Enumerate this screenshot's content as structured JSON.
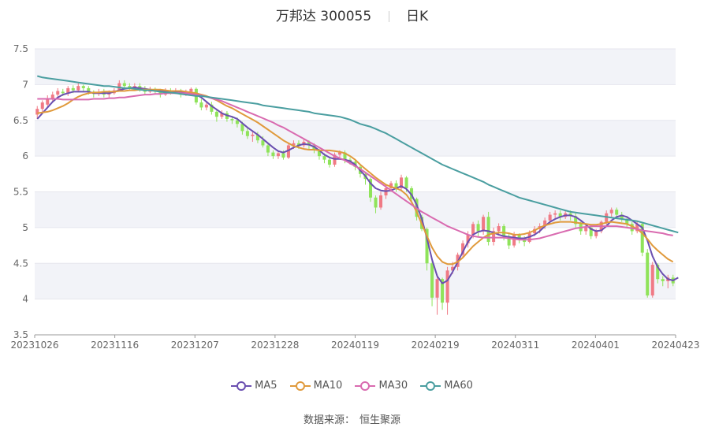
{
  "title": {
    "name": "万邦达",
    "code": "300055",
    "period": "日K"
  },
  "source": {
    "label": "数据来源：",
    "name": "恒生聚源"
  },
  "colors": {
    "up": "#f07a85",
    "down": "#8fe35a",
    "ma5": "#6a4fb0",
    "ma10": "#e09a3c",
    "ma30": "#d96bb0",
    "ma60": "#4a9ea0",
    "band": "#f2f3f8",
    "grid": "#e6e6ee",
    "axis": "#666666"
  },
  "chart_data": {
    "type": "candlestick",
    "title": "万邦达 300055 日K",
    "ylim": [
      3.5,
      7.5
    ],
    "yticks": [
      "3.5",
      "4",
      "4.5",
      "5",
      "5.5",
      "6",
      "6.5",
      "7",
      "7.5"
    ],
    "xticks": [
      "20231026",
      "20231116",
      "20231207",
      "20231228",
      "20240119",
      "20240219",
      "20240311",
      "20240401",
      "20240423"
    ],
    "legend": [
      "MA5",
      "MA10",
      "MA30",
      "MA60"
    ],
    "legend_position": "bottom",
    "candles": [
      [
        6.58,
        6.66,
        6.52,
        6.7
      ],
      [
        6.66,
        6.75,
        6.62,
        6.78
      ],
      [
        6.72,
        6.8,
        6.68,
        6.85
      ],
      [
        6.8,
        6.86,
        6.76,
        6.9
      ],
      [
        6.86,
        6.91,
        6.82,
        6.95
      ],
      [
        6.9,
        6.88,
        6.84,
        6.94
      ],
      [
        6.88,
        6.95,
        6.84,
        6.98
      ],
      [
        6.95,
        6.92,
        6.88,
        6.99
      ],
      [
        6.92,
        6.98,
        6.9,
        7.02
      ],
      [
        6.98,
        6.95,
        6.9,
        7.0
      ],
      [
        6.95,
        6.9,
        6.86,
        6.98
      ],
      [
        6.9,
        6.87,
        6.82,
        6.92
      ],
      [
        6.87,
        6.9,
        6.84,
        6.94
      ],
      [
        6.9,
        6.86,
        6.82,
        6.94
      ],
      [
        6.86,
        6.88,
        6.82,
        6.92
      ],
      [
        6.88,
        6.92,
        6.86,
        6.95
      ],
      [
        6.92,
        7.02,
        6.9,
        7.06
      ],
      [
        7.02,
        6.98,
        6.94,
        7.06
      ],
      [
        6.98,
        6.96,
        6.92,
        7.02
      ],
      [
        6.96,
        6.98,
        6.92,
        7.02
      ],
      [
        6.98,
        6.95,
        6.9,
        7.02
      ],
      [
        6.95,
        6.9,
        6.86,
        6.98
      ],
      [
        6.9,
        6.94,
        6.88,
        6.97
      ],
      [
        6.94,
        6.91,
        6.87,
        6.96
      ],
      [
        6.91,
        6.86,
        6.82,
        6.94
      ],
      [
        6.86,
        6.92,
        6.84,
        6.95
      ],
      [
        6.92,
        6.9,
        6.86,
        6.95
      ],
      [
        6.9,
        6.92,
        6.87,
        6.95
      ],
      [
        6.92,
        6.86,
        6.82,
        6.94
      ],
      [
        6.86,
        6.9,
        6.84,
        6.93
      ],
      [
        6.9,
        6.94,
        6.86,
        6.96
      ],
      [
        6.94,
        6.75,
        6.72,
        6.96
      ],
      [
        6.75,
        6.68,
        6.64,
        6.8
      ],
      [
        6.68,
        6.72,
        6.64,
        6.76
      ],
      [
        6.72,
        6.62,
        6.58,
        6.76
      ],
      [
        6.62,
        6.55,
        6.48,
        6.66
      ],
      [
        6.55,
        6.6,
        6.52,
        6.64
      ],
      [
        6.6,
        6.52,
        6.48,
        6.63
      ],
      [
        6.52,
        6.5,
        6.45,
        6.56
      ],
      [
        6.5,
        6.45,
        6.4,
        6.54
      ],
      [
        6.45,
        6.35,
        6.3,
        6.48
      ],
      [
        6.35,
        6.28,
        6.24,
        6.4
      ],
      [
        6.28,
        6.3,
        6.2,
        6.34
      ],
      [
        6.3,
        6.22,
        6.18,
        6.34
      ],
      [
        6.22,
        6.15,
        6.12,
        6.28
      ],
      [
        6.15,
        6.05,
        6.0,
        6.18
      ],
      [
        6.05,
        6.0,
        5.96,
        6.08
      ],
      [
        6.0,
        6.04,
        5.96,
        6.08
      ],
      [
        6.04,
        5.98,
        5.95,
        6.08
      ],
      [
        5.98,
        6.15,
        5.96,
        6.18
      ],
      [
        6.15,
        6.18,
        6.1,
        6.22
      ],
      [
        6.18,
        6.15,
        6.1,
        6.22
      ],
      [
        6.15,
        6.2,
        6.12,
        6.24
      ],
      [
        6.2,
        6.15,
        6.1,
        6.22
      ],
      [
        6.15,
        6.08,
        6.04,
        6.18
      ],
      [
        6.08,
        6.0,
        5.95,
        6.1
      ],
      [
        6.0,
        5.95,
        5.9,
        6.04
      ],
      [
        5.95,
        5.88,
        5.84,
        5.98
      ],
      [
        5.88,
        6.02,
        5.85,
        6.05
      ],
      [
        6.02,
        6.05,
        5.98,
        6.08
      ],
      [
        6.05,
        5.95,
        5.9,
        6.08
      ],
      [
        5.95,
        5.92,
        5.88,
        5.98
      ],
      [
        5.92,
        5.85,
        5.8,
        5.95
      ],
      [
        5.85,
        5.75,
        5.7,
        5.88
      ],
      [
        5.75,
        5.68,
        5.6,
        5.78
      ],
      [
        5.68,
        5.42,
        5.36,
        5.7
      ],
      [
        5.42,
        5.28,
        5.2,
        5.45
      ],
      [
        5.28,
        5.45,
        5.25,
        5.5
      ],
      [
        5.45,
        5.55,
        5.4,
        5.6
      ],
      [
        5.55,
        5.62,
        5.5,
        5.65
      ],
      [
        5.62,
        5.55,
        5.5,
        5.66
      ],
      [
        5.55,
        5.7,
        5.52,
        5.74
      ],
      [
        5.7,
        5.55,
        5.5,
        5.72
      ],
      [
        5.55,
        5.4,
        5.35,
        5.58
      ],
      [
        5.4,
        5.15,
        5.1,
        5.42
      ],
      [
        5.15,
        4.98,
        4.95,
        5.18
      ],
      [
        4.98,
        4.5,
        4.4,
        5.0
      ],
      [
        4.5,
        4.02,
        3.9,
        4.55
      ],
      [
        4.02,
        4.28,
        3.78,
        4.35
      ],
      [
        4.28,
        3.95,
        3.85,
        4.3
      ],
      [
        3.95,
        4.4,
        3.78,
        4.45
      ],
      [
        4.4,
        4.45,
        4.35,
        4.52
      ],
      [
        4.45,
        4.62,
        4.4,
        4.65
      ],
      [
        4.62,
        4.78,
        4.58,
        4.82
      ],
      [
        4.78,
        4.9,
        4.72,
        4.95
      ],
      [
        4.9,
        5.05,
        4.85,
        5.08
      ],
      [
        5.05,
        4.95,
        4.88,
        5.1
      ],
      [
        4.95,
        5.15,
        4.9,
        5.18
      ],
      [
        5.15,
        4.8,
        4.75,
        5.22
      ],
      [
        4.8,
        4.95,
        4.75,
        5.0
      ],
      [
        4.95,
        5.02,
        4.9,
        5.06
      ],
      [
        5.02,
        4.88,
        4.82,
        5.05
      ],
      [
        4.88,
        4.75,
        4.7,
        4.92
      ],
      [
        4.75,
        4.9,
        4.72,
        4.94
      ],
      [
        4.9,
        4.85,
        4.78,
        4.92
      ],
      [
        4.85,
        4.8,
        4.74,
        4.88
      ],
      [
        4.8,
        4.92,
        4.78,
        4.96
      ],
      [
        4.92,
        4.98,
        4.88,
        5.02
      ],
      [
        4.98,
        5.02,
        4.92,
        5.06
      ],
      [
        5.02,
        5.1,
        4.98,
        5.14
      ],
      [
        5.1,
        5.18,
        5.05,
        5.22
      ],
      [
        5.18,
        5.2,
        5.12,
        5.24
      ],
      [
        5.2,
        5.15,
        5.1,
        5.24
      ],
      [
        5.15,
        5.2,
        5.12,
        5.24
      ],
      [
        5.2,
        5.16,
        5.1,
        5.24
      ],
      [
        5.16,
        5.05,
        5.0,
        5.2
      ],
      [
        5.05,
        4.95,
        4.9,
        5.08
      ],
      [
        4.95,
        5.0,
        4.9,
        5.04
      ],
      [
        5.0,
        4.88,
        4.84,
        5.04
      ],
      [
        4.88,
        4.95,
        4.85,
        4.98
      ],
      [
        4.95,
        5.08,
        4.92,
        5.1
      ],
      [
        5.08,
        5.2,
        5.04,
        5.24
      ],
      [
        5.2,
        5.25,
        5.15,
        5.28
      ],
      [
        5.25,
        5.18,
        5.12,
        5.28
      ],
      [
        5.18,
        5.12,
        5.08,
        5.22
      ],
      [
        5.12,
        5.05,
        5.0,
        5.16
      ],
      [
        5.05,
        4.95,
        4.9,
        5.08
      ],
      [
        4.95,
        5.05,
        4.92,
        5.08
      ],
      [
        5.05,
        4.65,
        4.6,
        5.08
      ],
      [
        4.65,
        4.05,
        4.02,
        4.7
      ],
      [
        4.05,
        4.48,
        4.02,
        4.52
      ],
      [
        4.48,
        4.28,
        4.22,
        4.5
      ],
      [
        4.28,
        4.25,
        4.18,
        4.32
      ],
      [
        4.25,
        4.3,
        4.15,
        4.34
      ],
      [
        4.3,
        4.22,
        4.18,
        4.34
      ]
    ],
    "series": [
      {
        "name": "MA5",
        "values": [
          6.52,
          6.6,
          6.68,
          6.76,
          6.82,
          6.86,
          6.88,
          6.9,
          6.9,
          6.9,
          6.9,
          6.88,
          6.88,
          6.88,
          6.88,
          6.9,
          6.92,
          6.94,
          6.95,
          6.96,
          6.95,
          6.94,
          6.93,
          6.92,
          6.91,
          6.9,
          6.9,
          6.9,
          6.9,
          6.89,
          6.88,
          6.86,
          6.82,
          6.76,
          6.7,
          6.65,
          6.6,
          6.57,
          6.55,
          6.52,
          6.46,
          6.4,
          6.35,
          6.3,
          6.24,
          6.18,
          6.12,
          6.07,
          6.05,
          6.08,
          6.12,
          6.15,
          6.17,
          6.16,
          6.13,
          6.08,
          6.02,
          5.98,
          5.96,
          5.96,
          5.95,
          5.93,
          5.88,
          5.8,
          5.72,
          5.62,
          5.55,
          5.52,
          5.51,
          5.52,
          5.55,
          5.58,
          5.54,
          5.46,
          5.32,
          5.12,
          4.85,
          4.55,
          4.32,
          4.22,
          4.26,
          4.38,
          4.52,
          4.66,
          4.8,
          4.9,
          4.94,
          4.96,
          4.95,
          4.93,
          4.9,
          4.88,
          4.87,
          4.86,
          4.85,
          4.85,
          4.87,
          4.9,
          4.95,
          5.02,
          5.08,
          5.12,
          5.15,
          5.17,
          5.17,
          5.15,
          5.1,
          5.04,
          4.98,
          4.95,
          4.96,
          5.02,
          5.1,
          5.15,
          5.17,
          5.15,
          5.1,
          5.05,
          5.0,
          4.82,
          4.6,
          4.45,
          4.35,
          4.28,
          4.26,
          4.3
        ]
      },
      {
        "name": "MA10",
        "values": [
          6.6,
          6.61,
          6.62,
          6.64,
          6.67,
          6.7,
          6.74,
          6.79,
          6.83,
          6.86,
          6.88,
          6.89,
          6.89,
          6.9,
          6.9,
          6.9,
          6.91,
          6.91,
          6.92,
          6.92,
          6.93,
          6.93,
          6.93,
          6.93,
          6.93,
          6.92,
          6.91,
          6.91,
          6.91,
          6.9,
          6.89,
          6.88,
          6.86,
          6.84,
          6.81,
          6.78,
          6.74,
          6.7,
          6.67,
          6.63,
          6.59,
          6.55,
          6.51,
          6.47,
          6.42,
          6.37,
          6.32,
          6.27,
          6.22,
          6.18,
          6.14,
          6.12,
          6.1,
          6.09,
          6.09,
          6.08,
          6.08,
          6.08,
          6.07,
          6.06,
          6.04,
          6.0,
          5.95,
          5.88,
          5.82,
          5.76,
          5.7,
          5.65,
          5.6,
          5.57,
          5.55,
          5.52,
          5.46,
          5.36,
          5.22,
          5.05,
          4.88,
          4.72,
          4.6,
          4.52,
          4.49,
          4.49,
          4.52,
          4.58,
          4.66,
          4.74,
          4.8,
          4.86,
          4.9,
          4.92,
          4.93,
          4.93,
          4.92,
          4.9,
          4.9,
          4.91,
          4.93,
          4.96,
          5.0,
          5.03,
          5.05,
          5.07,
          5.08,
          5.08,
          5.08,
          5.07,
          5.06,
          5.05,
          5.04,
          5.04,
          5.05,
          5.07,
          5.08,
          5.07,
          5.06,
          5.05,
          5.02,
          4.98,
          4.92,
          4.84,
          4.75,
          4.68,
          4.62,
          4.56,
          4.52
        ]
      },
      {
        "name": "MA30",
        "values": [
          6.8,
          6.8,
          6.8,
          6.8,
          6.8,
          6.79,
          6.79,
          6.79,
          6.79,
          6.79,
          6.79,
          6.8,
          6.8,
          6.8,
          6.81,
          6.81,
          6.82,
          6.82,
          6.83,
          6.84,
          6.85,
          6.86,
          6.86,
          6.87,
          6.87,
          6.88,
          6.88,
          6.88,
          6.88,
          6.88,
          6.87,
          6.86,
          6.85,
          6.83,
          6.81,
          6.79,
          6.77,
          6.74,
          6.71,
          6.68,
          6.65,
          6.62,
          6.59,
          6.56,
          6.53,
          6.5,
          6.47,
          6.43,
          6.4,
          6.36,
          6.32,
          6.28,
          6.24,
          6.2,
          6.16,
          6.12,
          6.08,
          6.04,
          6.0,
          5.97,
          5.94,
          5.9,
          5.86,
          5.82,
          5.77,
          5.72,
          5.67,
          5.62,
          5.57,
          5.52,
          5.47,
          5.42,
          5.37,
          5.32,
          5.27,
          5.22,
          5.18,
          5.14,
          5.1,
          5.06,
          5.02,
          4.99,
          4.96,
          4.93,
          4.9,
          4.88,
          4.87,
          4.86,
          4.86,
          4.86,
          4.86,
          4.86,
          4.85,
          4.84,
          4.83,
          4.83,
          4.83,
          4.84,
          4.85,
          4.87,
          4.89,
          4.91,
          4.93,
          4.95,
          4.97,
          4.99,
          5.0,
          5.01,
          5.02,
          5.02,
          5.02,
          5.02,
          5.02,
          5.02,
          5.01,
          5.0,
          4.99,
          4.98,
          4.96,
          4.95,
          4.94,
          4.93,
          4.92,
          4.9,
          4.89
        ]
      },
      {
        "name": "MA60",
        "values": [
          7.12,
          7.1,
          7.09,
          7.08,
          7.07,
          7.06,
          7.05,
          7.04,
          7.03,
          7.02,
          7.01,
          7.0,
          6.99,
          6.98,
          6.98,
          6.97,
          6.96,
          6.95,
          6.95,
          6.94,
          6.93,
          6.92,
          6.92,
          6.91,
          6.9,
          6.89,
          6.89,
          6.88,
          6.87,
          6.86,
          6.85,
          6.84,
          6.84,
          6.83,
          6.82,
          6.81,
          6.8,
          6.79,
          6.78,
          6.77,
          6.76,
          6.75,
          6.74,
          6.73,
          6.71,
          6.7,
          6.69,
          6.68,
          6.67,
          6.66,
          6.65,
          6.64,
          6.63,
          6.62,
          6.6,
          6.59,
          6.58,
          6.57,
          6.56,
          6.55,
          6.53,
          6.51,
          6.48,
          6.45,
          6.43,
          6.41,
          6.38,
          6.35,
          6.32,
          6.28,
          6.24,
          6.2,
          6.16,
          6.12,
          6.08,
          6.04,
          6.0,
          5.96,
          5.92,
          5.88,
          5.85,
          5.82,
          5.79,
          5.76,
          5.73,
          5.7,
          5.67,
          5.64,
          5.6,
          5.57,
          5.54,
          5.51,
          5.48,
          5.45,
          5.42,
          5.4,
          5.38,
          5.36,
          5.34,
          5.32,
          5.3,
          5.28,
          5.26,
          5.24,
          5.22,
          5.21,
          5.2,
          5.19,
          5.18,
          5.17,
          5.16,
          5.15,
          5.14,
          5.13,
          5.12,
          5.11,
          5.1,
          5.09,
          5.07,
          5.05,
          5.03,
          5.01,
          4.99,
          4.97,
          4.95,
          4.93
        ]
      }
    ]
  }
}
